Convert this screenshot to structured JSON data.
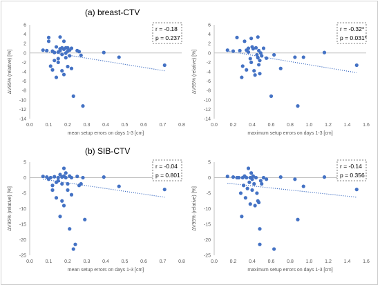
{
  "sections": [
    {
      "label": "(a) breast-CTV"
    },
    {
      "label": "(b) SIB-CTV"
    }
  ],
  "colors": {
    "points": "#4472c4",
    "trend": "#4472c4",
    "axis": "#bfbfbf",
    "zero_line": "#bfbfbf",
    "text": "#595959"
  },
  "chart_data": [
    {
      "type": "scatter",
      "section": "(a) breast-CTV",
      "xlabel": "mean setup errors on days 1-3 [cm]",
      "ylabel": "ΔV95% (relative) [%]",
      "xlim": [
        0,
        0.8
      ],
      "xticks": [
        0.0,
        0.1,
        0.2,
        0.3,
        0.4,
        0.5,
        0.6,
        0.7,
        0.8
      ],
      "xtick_decimals": 1,
      "ylim": [
        -14,
        6
      ],
      "yticks": [
        6,
        4,
        2,
        0,
        -2,
        -4,
        -6,
        -8,
        -10,
        -12,
        -14
      ],
      "grid": false,
      "stats": [
        "r = -0.18",
        "p = 0.237"
      ],
      "trendline": {
        "x": [
          0.07,
          0.71
        ],
        "y": [
          0.4,
          -3.8
        ],
        "style": "dotted"
      },
      "x": [
        0.07,
        0.09,
        0.1,
        0.1,
        0.11,
        0.12,
        0.12,
        0.13,
        0.13,
        0.14,
        0.14,
        0.15,
        0.15,
        0.15,
        0.16,
        0.16,
        0.16,
        0.17,
        0.17,
        0.17,
        0.18,
        0.18,
        0.18,
        0.19,
        0.19,
        0.19,
        0.2,
        0.2,
        0.2,
        0.21,
        0.21,
        0.22,
        0.22,
        0.23,
        0.25,
        0.26,
        0.27,
        0.28,
        0.39,
        0.47,
        0.71
      ],
      "y": [
        0.6,
        0.5,
        3.3,
        2.5,
        -2.8,
        0.4,
        -3.6,
        0.1,
        -1.6,
        1.3,
        -5.2,
        0.2,
        -1.2,
        -2.0,
        3.4,
        0.9,
        0.5,
        1.1,
        -0.3,
        -3.8,
        2.5,
        0.8,
        -4.6,
        1.1,
        0.0,
        -1.0,
        1.1,
        0.4,
        -2.9,
        0.6,
        -0.6,
        1.0,
        -3.3,
        -9.2,
        0.5,
        0.3,
        -0.5,
        -11.3,
        0.1,
        -0.9,
        -2.6
      ]
    },
    {
      "type": "scatter",
      "section": "(a) breast-CTV",
      "xlabel": "maximum setup errors on days 1-3 [cm]",
      "ylabel": "ΔV95% (relative) [%]",
      "xlim": [
        0,
        1.6
      ],
      "xticks": [
        0,
        0.2,
        0.4,
        0.6,
        0.8,
        1.0,
        1.2,
        1.4,
        1.6
      ],
      "xtick_decimals": 1,
      "ylim": [
        -14,
        6
      ],
      "yticks": [
        6,
        4,
        2,
        0,
        -2,
        -4,
        -6,
        -8,
        -10,
        -12,
        -14
      ],
      "grid": false,
      "stats": [
        "r = -0.32*",
        "p = 0.031*"
      ],
      "trendline": {
        "x": [
          0.14,
          1.5
        ],
        "y": [
          0.4,
          -4.2
        ],
        "style": "dotted"
      },
      "x": [
        0.14,
        0.2,
        0.24,
        0.27,
        0.29,
        0.3,
        0.32,
        0.34,
        0.34,
        0.36,
        0.36,
        0.38,
        0.39,
        0.39,
        0.4,
        0.41,
        0.42,
        0.43,
        0.44,
        0.45,
        0.46,
        0.46,
        0.47,
        0.47,
        0.48,
        0.48,
        0.49,
        0.5,
        0.52,
        0.55,
        0.6,
        0.63,
        0.7,
        0.85,
        0.88,
        0.94,
        1.16,
        1.5
      ],
      "y": [
        0.6,
        0.4,
        3.3,
        0.5,
        -5.2,
        -2.8,
        2.5,
        0.6,
        -3.6,
        1.0,
        0.2,
        -1.2,
        3.1,
        -2.0,
        1.3,
        0.9,
        -3.8,
        -4.7,
        1.1,
        -0.4,
        3.4,
        -1.0,
        0.5,
        -2.5,
        -1.6,
        -4.4,
        0.0,
        -0.6,
        1.0,
        -1.1,
        -9.2,
        -0.4,
        -3.3,
        -0.9,
        -11.3,
        -0.9,
        0.1,
        -2.6
      ]
    },
    {
      "type": "scatter",
      "section": "(b) SIB-CTV",
      "xlabel": "mean setup errors on days 1-3 [cm]",
      "ylabel": "ΔV95% (relative) [%]",
      "xlim": [
        0,
        0.8
      ],
      "xticks": [
        0.0,
        0.1,
        0.2,
        0.3,
        0.4,
        0.5,
        0.6,
        0.7,
        0.8
      ],
      "xtick_decimals": 1,
      "ylim": [
        -25,
        5
      ],
      "yticks": [
        5,
        0,
        -5,
        -10,
        -15,
        -20,
        -25
      ],
      "grid": false,
      "stats": [
        "r = -0.04",
        "p = 0.801"
      ],
      "trendline": {
        "x": [
          0.07,
          0.71
        ],
        "y": [
          -0.5,
          -6.3
        ],
        "style": "dotted"
      },
      "x": [
        0.07,
        0.09,
        0.1,
        0.11,
        0.12,
        0.12,
        0.13,
        0.14,
        0.14,
        0.15,
        0.15,
        0.16,
        0.16,
        0.17,
        0.17,
        0.17,
        0.18,
        0.18,
        0.18,
        0.19,
        0.19,
        0.2,
        0.2,
        0.21,
        0.21,
        0.22,
        0.22,
        0.23,
        0.24,
        0.25,
        0.26,
        0.27,
        0.28,
        0.29,
        0.39,
        0.47,
        0.71
      ],
      "y": [
        0.4,
        0.2,
        -0.5,
        0.0,
        -2.5,
        -4.0,
        0.3,
        -6.5,
        -1.5,
        0.0,
        -1.0,
        1.0,
        -12.5,
        0.2,
        -2.0,
        -7.5,
        3.0,
        0.5,
        -9.0,
        1.5,
        0.0,
        -2.0,
        -4.0,
        0.5,
        -16.5,
        0.0,
        -5.5,
        -23.0,
        -21.5,
        0.4,
        -2.5,
        -2.0,
        0.0,
        -13.5,
        0.2,
        -2.8,
        -3.8
      ]
    },
    {
      "type": "scatter",
      "section": "(b) SIB-CTV",
      "xlabel": "maximum setup errors on days 1-3 [cm]",
      "ylabel": "ΔV95% (relative) [%]",
      "xlim": [
        0,
        1.6
      ],
      "xticks": [
        0,
        0.2,
        0.4,
        0.6,
        0.8,
        1.0,
        1.2,
        1.4,
        1.6
      ],
      "xtick_decimals": 1,
      "ylim": [
        -25,
        5
      ],
      "yticks": [
        5,
        0,
        -5,
        -10,
        -15,
        -20,
        -25
      ],
      "grid": false,
      "stats": [
        "r = -0.14",
        "p = 0.356"
      ],
      "trendline": {
        "x": [
          0.14,
          1.5
        ],
        "y": [
          -1.8,
          -6.3
        ],
        "style": "dotted"
      },
      "x": [
        0.14,
        0.2,
        0.24,
        0.26,
        0.28,
        0.29,
        0.3,
        0.31,
        0.32,
        0.33,
        0.34,
        0.35,
        0.36,
        0.37,
        0.38,
        0.38,
        0.39,
        0.4,
        0.4,
        0.41,
        0.42,
        0.43,
        0.44,
        0.45,
        0.46,
        0.47,
        0.48,
        0.48,
        0.49,
        0.5,
        0.52,
        0.55,
        0.63,
        0.7,
        0.85,
        0.88,
        0.94,
        1.16,
        1.5
      ],
      "y": [
        0.4,
        0.2,
        0.0,
        0.0,
        -5.0,
        -12.5,
        0.0,
        -2.5,
        0.5,
        -6.5,
        0.0,
        -3.5,
        3.0,
        -1.5,
        0.0,
        -8.5,
        1.5,
        -4.0,
        -0.5,
        0.5,
        -2.0,
        -9.0,
        0.0,
        -5.0,
        -7.5,
        -8.0,
        -16.5,
        -21.5,
        -1.0,
        -2.0,
        0.0,
        -0.5,
        -23.0,
        0.2,
        -0.5,
        -13.5,
        -2.8,
        0.2,
        -3.8
      ]
    }
  ]
}
